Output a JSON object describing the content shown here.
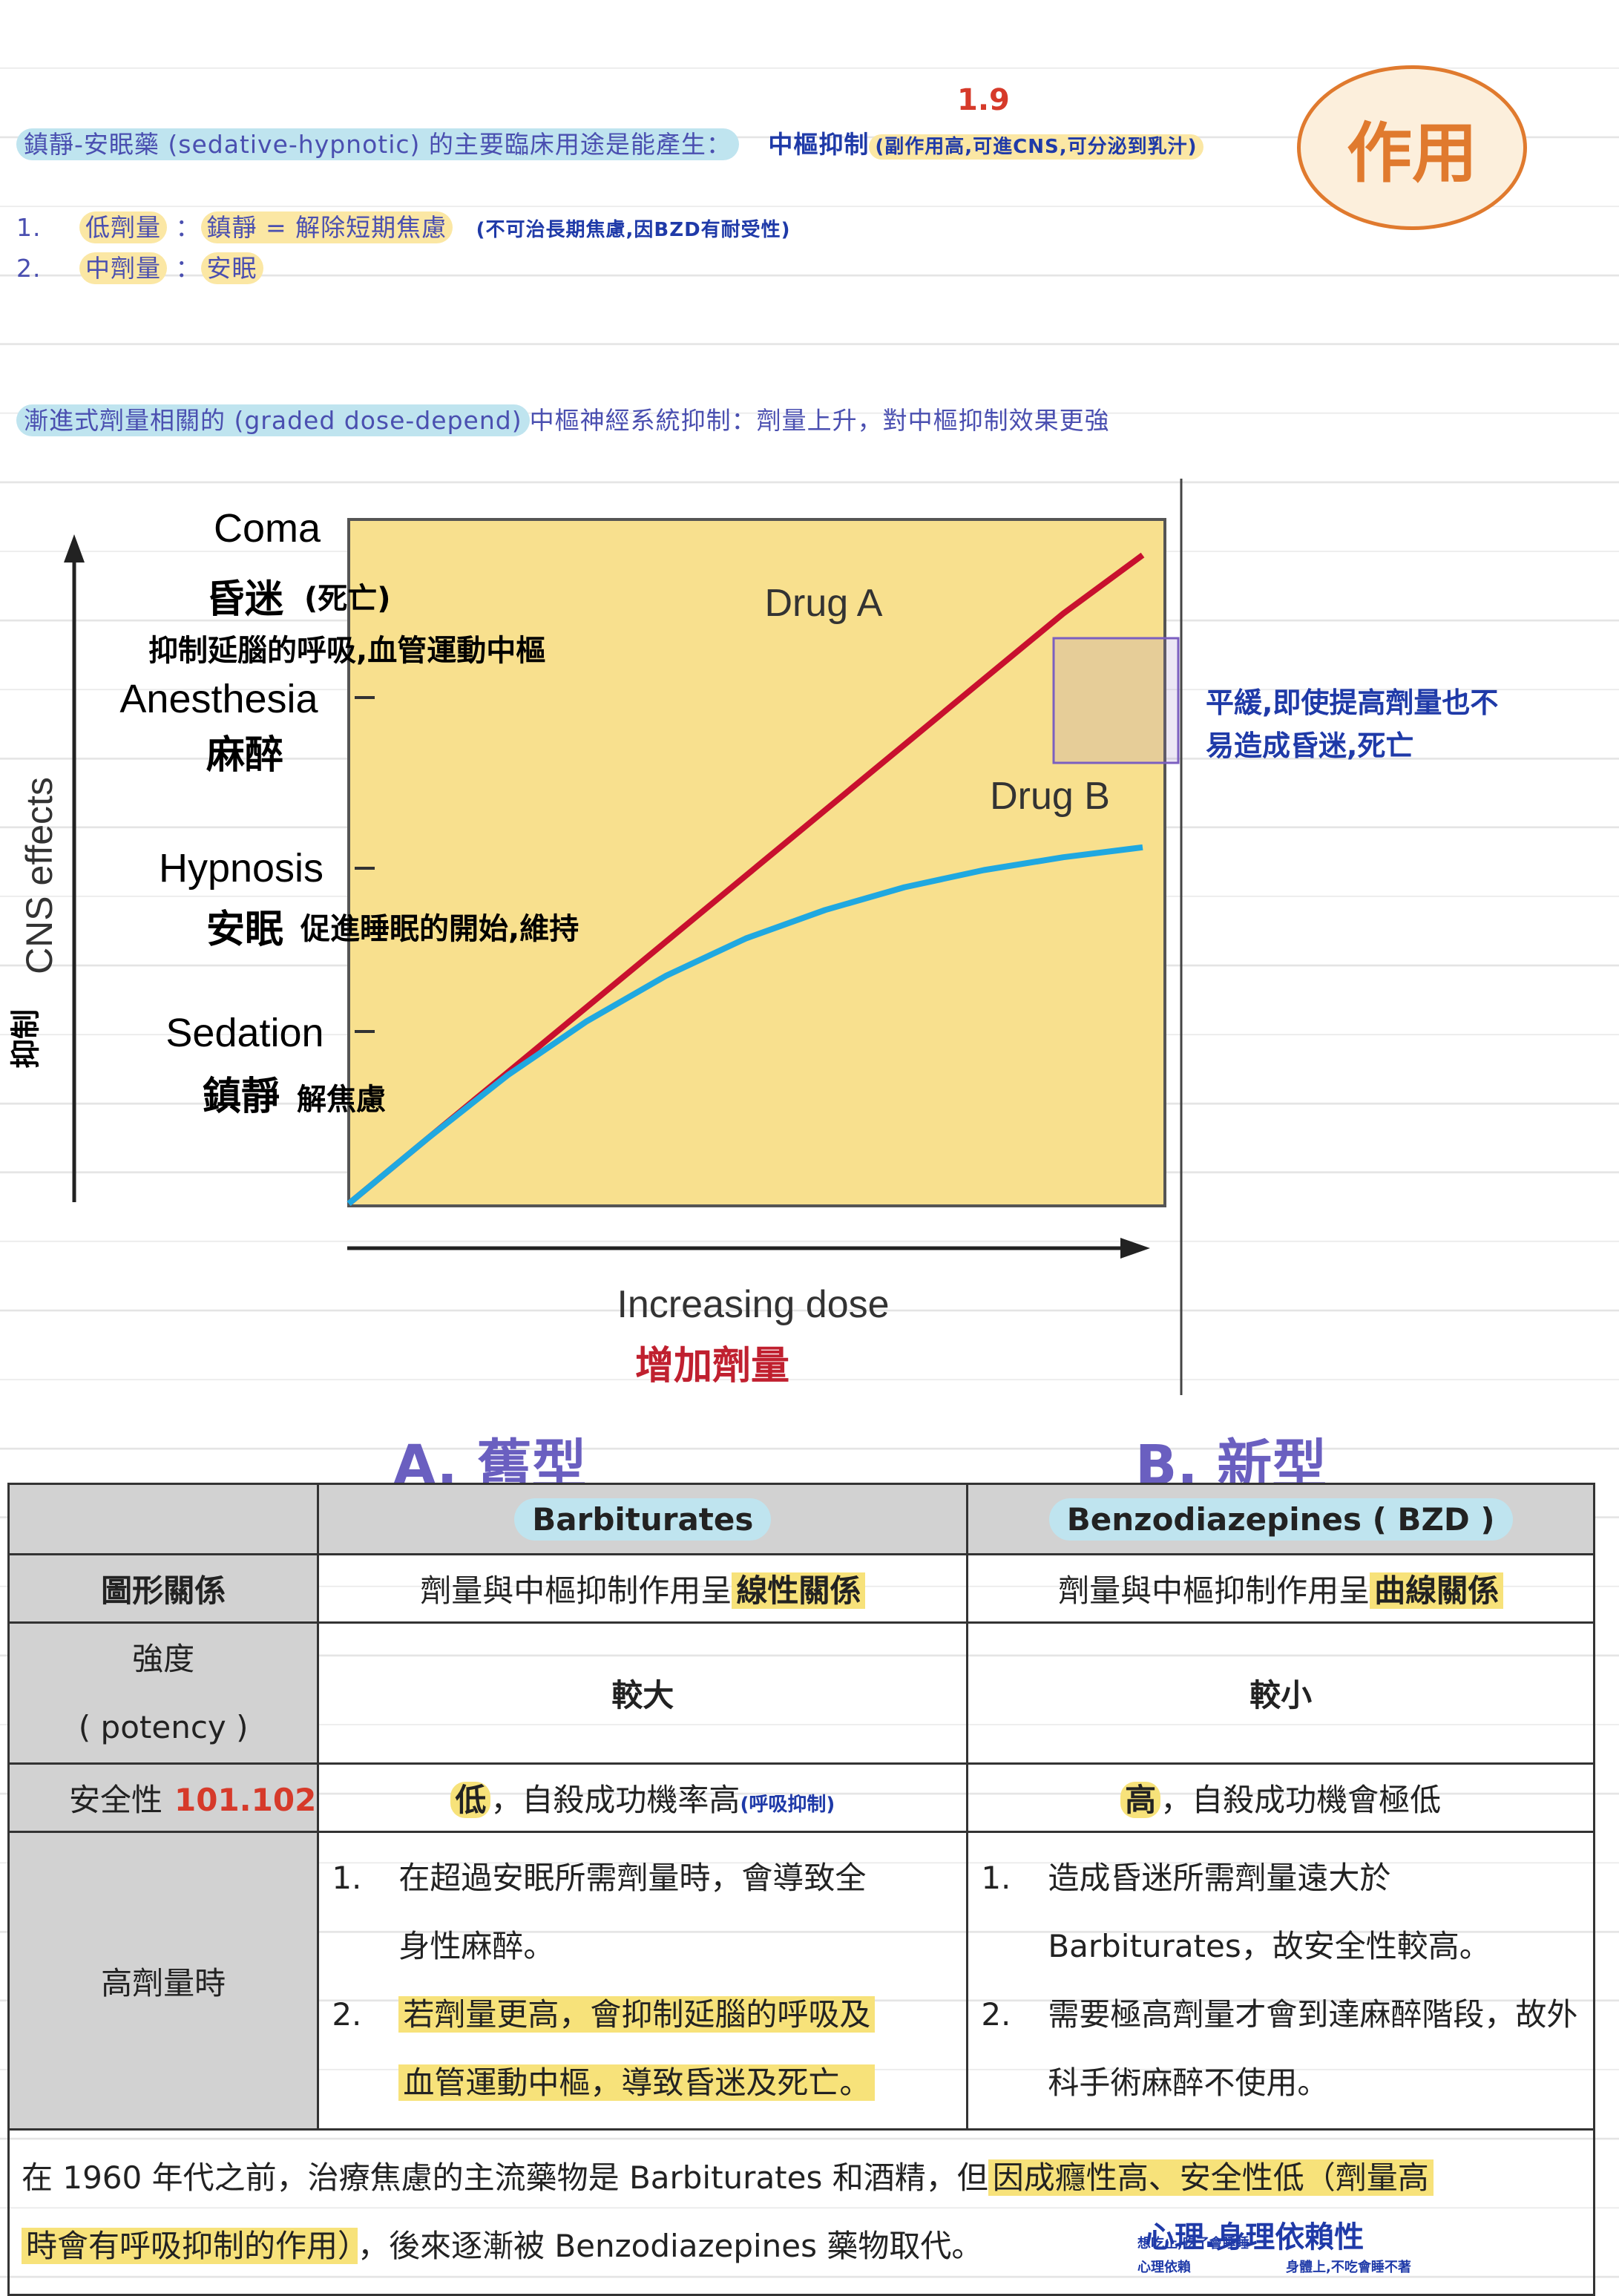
{
  "intro": {
    "lead": "鎮靜-安眠藥 (sedative-hypnotic) 的主要臨床用途是能產生：",
    "note_cns": "中樞抑制",
    "note_detail": "(副作用高,可進CNS,可分泌到乳汁)",
    "note_number": "1.9"
  },
  "badge": {
    "label": "作用"
  },
  "dose_levels": [
    {
      "num": "1.",
      "name": "低劑量",
      "effect": "鎮靜 = 解除短期焦慮",
      "note": "(不可治長期焦慮,因BZD有耐受性)"
    },
    {
      "num": "2.",
      "name": "中劑量",
      "effect": "安眠",
      "note": ""
    }
  ],
  "graded": {
    "term": "漸進式劑量相關的 (graded dose-depend)",
    "rest": "中樞神經系統抑制：劑量上升，對中樞抑制效果更強"
  },
  "chart_data": {
    "type": "line",
    "title": "",
    "xlabel": "Increasing dose",
    "xlabel_zh": "增加劑量",
    "ylabel": "CNS effects",
    "ylabel_note": "抑制",
    "y_levels": [
      {
        "en": "Sedation",
        "zh": "鎮靜",
        "note": "解焦慮"
      },
      {
        "en": "Hypnosis",
        "zh": "安眠",
        "note": "促進睡眠的開始,維持"
      },
      {
        "en": "Anesthesia",
        "zh": "麻醉",
        "note": ""
      },
      {
        "en": "Coma",
        "zh": "昏迷",
        "note": "(死亡)"
      }
    ],
    "coma_note": "抑制延腦的呼吸,血管運動中樞",
    "x": [
      0,
      0.1,
      0.2,
      0.3,
      0.4,
      0.5,
      0.6,
      0.7,
      0.8,
      0.9,
      1.0
    ],
    "series": [
      {
        "name": "Drug A",
        "color": "#c8102e",
        "y": [
          0.0,
          0.46,
          0.92,
          1.38,
          1.84,
          2.3,
          2.76,
          3.22,
          3.68,
          4.14,
          4.55
        ]
      },
      {
        "name": "Drug B",
        "color": "#20a8e0",
        "y": [
          0.0,
          0.46,
          0.9,
          1.28,
          1.6,
          1.86,
          2.06,
          2.22,
          2.34,
          2.43,
          2.5
        ]
      }
    ],
    "ylim": [
      0,
      4.8
    ],
    "plateau_note": "平緩,即使提高劑量也不易造成昏迷,死亡"
  },
  "type_headers": {
    "a": "A. 舊型",
    "b": "B. 新型"
  },
  "table": {
    "columns": [
      "Barbiturates",
      "Benzodiazepines ( BZD )"
    ],
    "rows": [
      {
        "label": "圖形關係",
        "a": {
          "pre": "劑量與中樞抑制作用呈",
          "hl": "線性關係"
        },
        "b": {
          "pre": "劑量與中樞抑制作用呈",
          "hl": "曲線關係"
        }
      },
      {
        "label": "強度",
        "label2": "( potency )",
        "a": "較大",
        "b": "較小"
      },
      {
        "label": "安全性",
        "note": "101.102",
        "a": {
          "hl": "低",
          "text": "，自殺成功機率高",
          "note": "(呼吸抑制)"
        },
        "b": {
          "hl": "高",
          "text": "，自殺成功機會極低"
        }
      },
      {
        "label": "高劑量時",
        "a": [
          {
            "num": "1.",
            "lines": [
              "在超過安眠所需劑量時，會導致全",
              "身性麻醉。"
            ]
          },
          {
            "num": "2.",
            "lines": [
              "若劑量更高，會抑制延腦的呼吸及",
              "血管運動中樞，導致昏迷及死亡。"
            ]
          }
        ],
        "b": [
          {
            "num": "1.",
            "lines": [
              "造成昏迷所需劑量遠大於",
              "Barbiturates，故安全性較高。"
            ]
          },
          {
            "num": "2.",
            "lines": [
              "需要極高劑量才會到達麻醉階段，故外",
              "科手術麻醉不使用。"
            ]
          }
        ]
      }
    ],
    "footer": {
      "p1": "在 1960 年代之前，治療焦慮的主流藥物是 Barbiturates 和酒精，但",
      "hl1": "因成癮性高、安全性低（劑量高",
      "hl2": "時會有呼吸抑制的作用）",
      "p2": "，後來逐漸被 Benzodiazepines 藥物取代。",
      "note": "心理.身理依賴性",
      "note_small1": "想吃止,吃了會睡睡",
      "note_small2": "心理依賴",
      "note_small3": "身體上,不吃會睡不著"
    }
  },
  "colors": {
    "drug_a": "#c8102e",
    "drug_b": "#20a8e0",
    "chart_bg": "#f8e08e",
    "highlight_yellow": "#f7e27a",
    "highlight_blue": "#bfe4ef",
    "badge": "#e07a2e"
  }
}
